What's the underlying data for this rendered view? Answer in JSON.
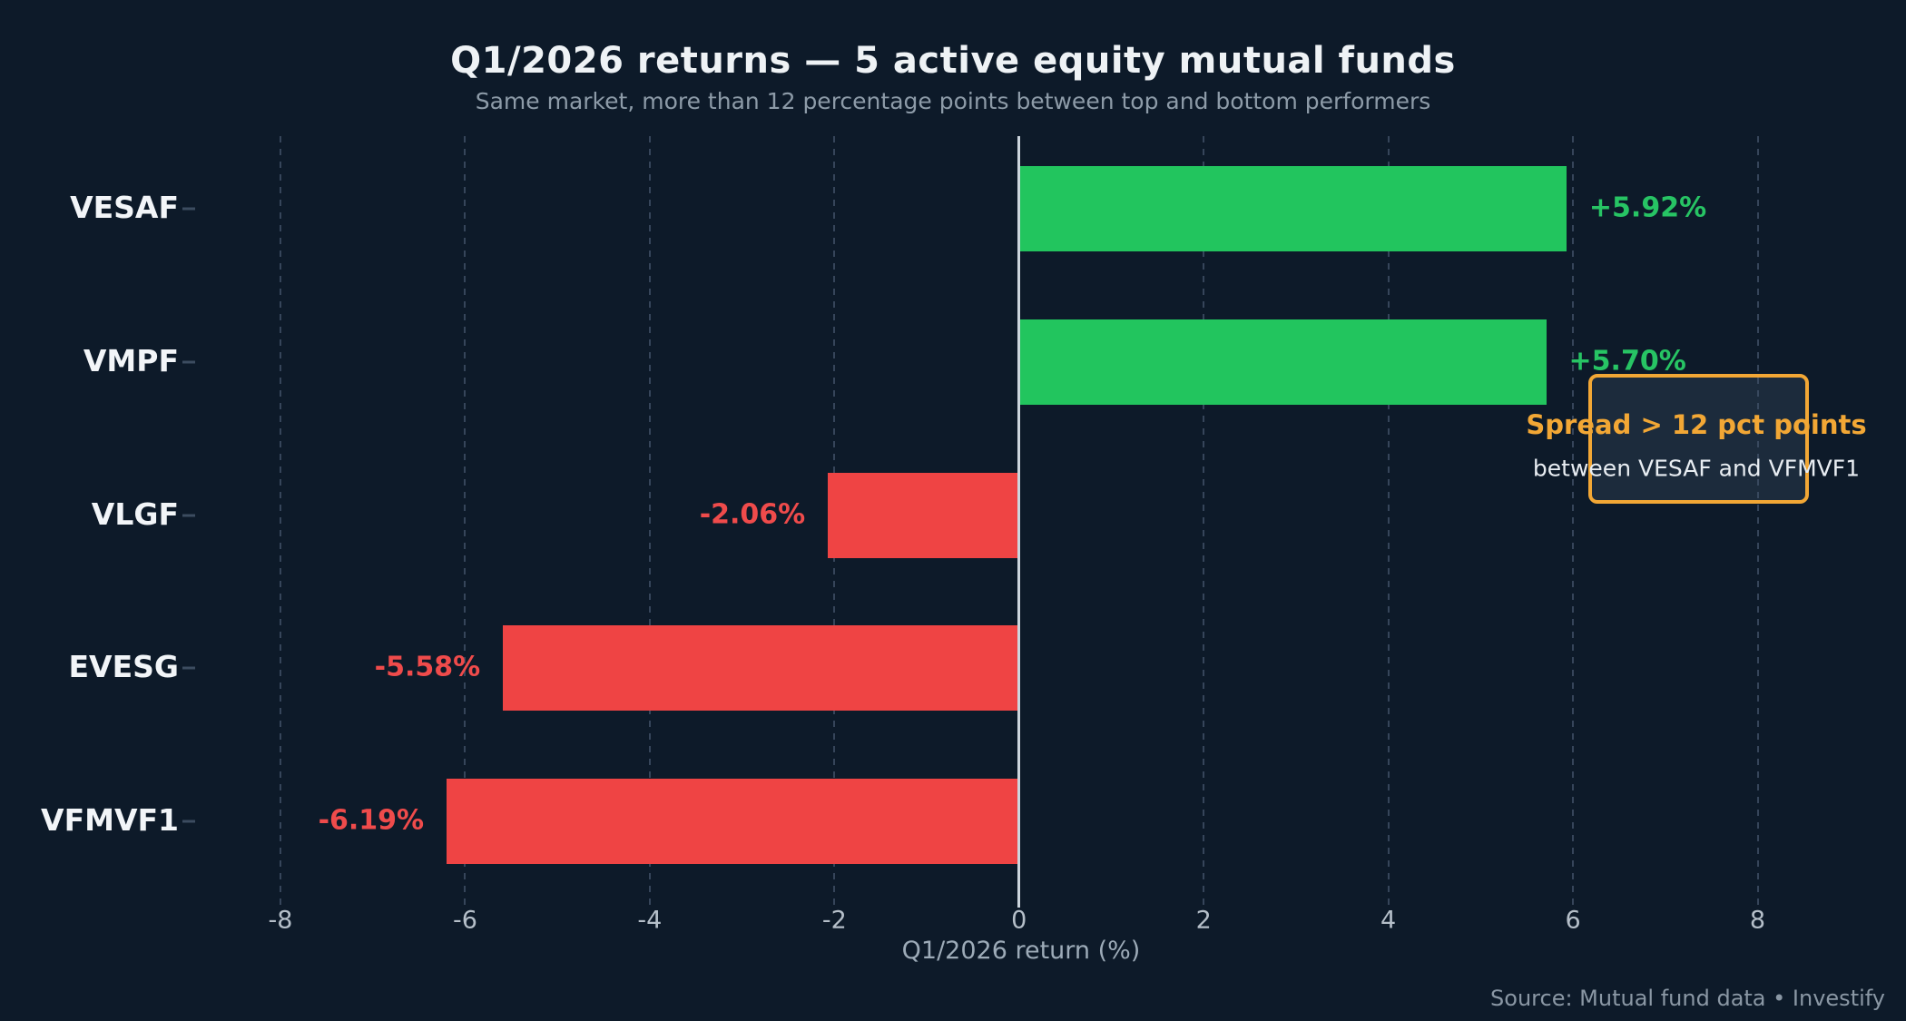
{
  "header": {
    "title": "Q1/2026 returns — 5 active equity mutual funds",
    "subtitle": "Same market, more than 12 percentage points between top and bottom performers"
  },
  "chart_data": {
    "type": "bar",
    "orientation": "horizontal",
    "categories": [
      "VESAF",
      "VMPF",
      "VLGF",
      "EVESG",
      "VFMVF1"
    ],
    "values": [
      5.92,
      5.7,
      -2.06,
      -5.58,
      -6.19
    ],
    "value_labels": [
      "+5.92%",
      "+5.70%",
      "-2.06%",
      "-5.58%",
      "-6.19%"
    ],
    "title": "Q1/2026 returns — 5 active equity mutual funds",
    "subtitle": "Same market, more than 12 percentage points between top and bottom performers",
    "xlabel": "Q1/2026 return (%)",
    "xlim": [
      -9,
      9.6
    ],
    "xticks": [
      -8,
      -6,
      -4,
      -2,
      0,
      2,
      4,
      6,
      8
    ],
    "xtick_labels": [
      "-8",
      "-6",
      "-4",
      "-2",
      "0",
      "2",
      "4",
      "6",
      "8"
    ],
    "grid": "vertical dashed gridlines, solid zero line",
    "legend": "none",
    "colors": {
      "positive_bar": "#22c55e",
      "negative_bar": "#ef4444",
      "positive_label": "#27c464",
      "negative_label": "#ef4b4b",
      "background": "#0d1a29",
      "annotation_accent": "#f2a735"
    }
  },
  "annotation": {
    "line1": "Spread > 12 pct points",
    "line2": "between VESAF and VFMVF1"
  },
  "footer": {
    "source": "Source: Mutual fund data • Investify"
  }
}
